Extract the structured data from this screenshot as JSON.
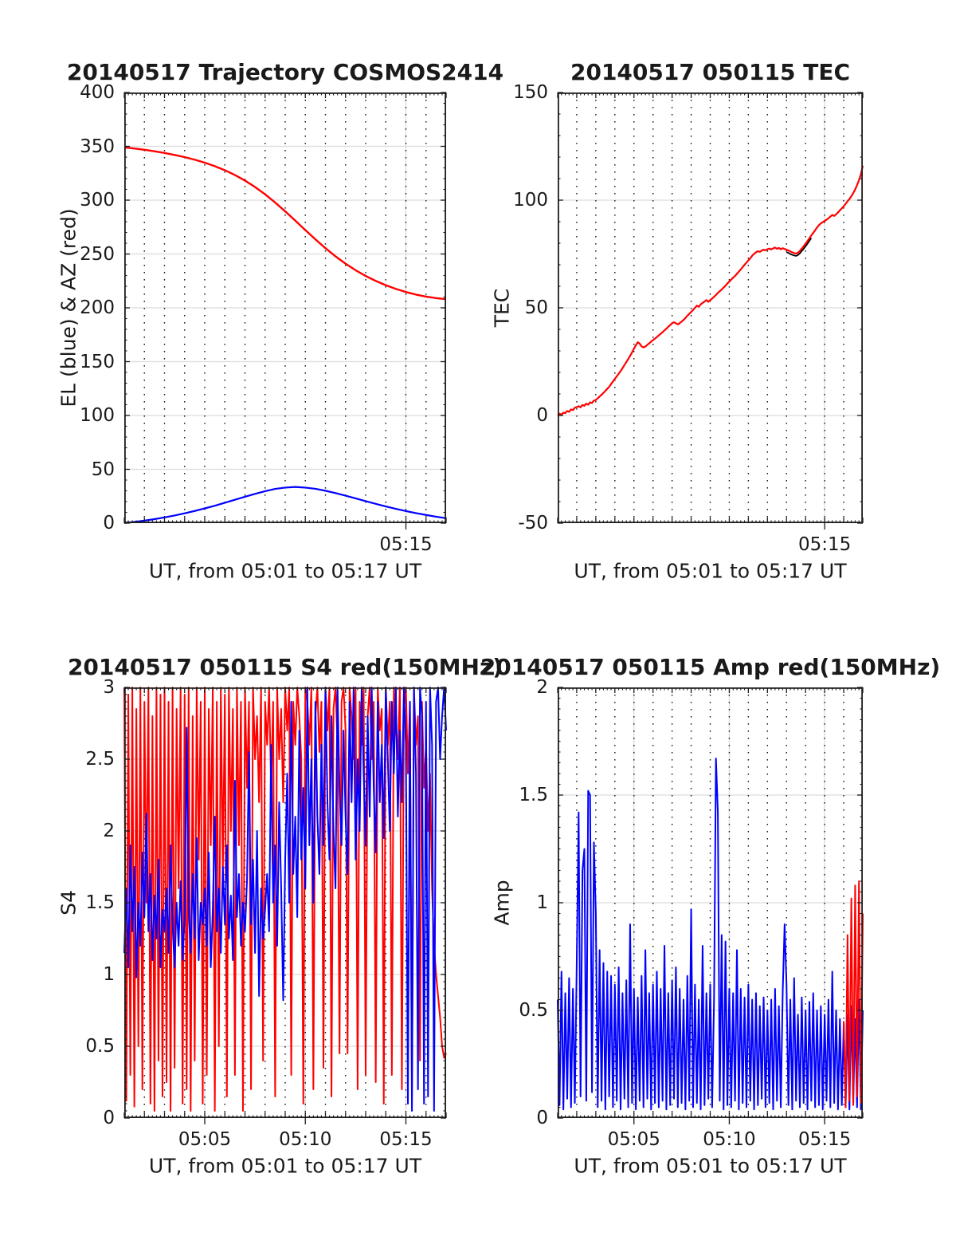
{
  "figure": {
    "background": "#ffffff",
    "text_color": "#1a1a1a",
    "axis_color": "#1c1c1c",
    "grid_solid_color": "#dcdcdc",
    "grid_dotted_color": "#1a1a1a",
    "red": "#ff0000",
    "blue": "#0000ff"
  },
  "chart_data": [
    {
      "type": "line",
      "title": "20140517 Trajectory COSMOS2414",
      "ylabel": "EL (blue) & AZ (red)",
      "xlabel": "UT, from 05:01 to 05:17 UT",
      "x_range": [
        1,
        17
      ],
      "x_minor": 0.2,
      "x_tick_labels": [
        {
          "m": 15,
          "label": "05:15"
        }
      ],
      "ylim": [
        0,
        400
      ],
      "y_ticks": [
        0,
        50,
        100,
        150,
        200,
        250,
        300,
        350,
        400
      ],
      "y_minor": 10,
      "grid": "dotted vertical each minute, solid gray horizontal at ticks",
      "legend": "none",
      "series": [
        {
          "name": "AZ (red)",
          "color": "#ff0000",
          "width": 2.4,
          "x_start": 1,
          "x_step": 0.5,
          "y": [
            349,
            348,
            346.8,
            345.4,
            343.8,
            342,
            340,
            337.6,
            334.8,
            331.6,
            327.8,
            323.4,
            318.2,
            312.2,
            305.4,
            297.8,
            289.6,
            281,
            272.2,
            263.6,
            255.4,
            247.8,
            241,
            234.9,
            229.6,
            225,
            221,
            217.6,
            214.7,
            212.3,
            210.4,
            209,
            208
          ]
        },
        {
          "name": "EL (blue)",
          "color": "#0000ff",
          "width": 2.2,
          "x_start": 1,
          "x_step": 0.5,
          "y": [
            0.2,
            1.1,
            2.3,
            3.7,
            5.3,
            7.1,
            9.1,
            11.3,
            13.7,
            16.2,
            18.9,
            21.7,
            24.5,
            27.2,
            29.7,
            31.8,
            33,
            33.6,
            33,
            31.9,
            30.1,
            27.9,
            25.5,
            23,
            20.4,
            17.9,
            15.5,
            13.3,
            11.2,
            9.3,
            7.6,
            6,
            4.6
          ]
        }
      ]
    },
    {
      "type": "line",
      "title": "20140517 050115 TEC",
      "ylabel": "TEC",
      "xlabel": "UT, from 05:01 to 05:17 UT",
      "x_range": [
        1,
        17
      ],
      "x_minor": 0.2,
      "x_tick_labels": [
        {
          "m": 15,
          "label": "05:15"
        }
      ],
      "ylim": [
        -50,
        150
      ],
      "y_ticks": [
        -50,
        0,
        50,
        100,
        150
      ],
      "y_minor": 10,
      "grid": "dotted vertical each minute, solid gray horizontal at ticks",
      "legend": "none",
      "series": [
        {
          "name": "TEC raw (black)",
          "color": "#000000",
          "width": 1.8,
          "x_start": 13.0,
          "x_step": 0.1,
          "y": [
            75.9,
            75.5,
            75,
            74.6,
            74.3,
            74.1,
            74.5,
            75.3,
            76.4,
            77.4,
            78.6,
            79.8,
            81.1,
            82.4
          ]
        },
        {
          "name": "TEC (red)",
          "color": "#ff0000",
          "width": 2.2,
          "x_start": 1,
          "x_step": 0.1,
          "y": [
            0,
            0.8,
            0.4,
            1.3,
            1.1,
            2.1,
            1.7,
            2.8,
            2.5,
            3.6,
            3.9,
            4.3,
            3.8,
            4.9,
            4.5,
            5.5,
            5,
            6.1,
            5.8,
            6.9,
            7.2,
            8,
            8.8,
            9.6,
            10.5,
            11.4,
            12.4,
            13.3,
            14.6,
            15.8,
            17,
            18.2,
            19.4,
            20.6,
            22,
            23.4,
            24.8,
            26.2,
            27.7,
            29.3,
            31,
            32.6,
            34,
            33.4,
            32.1,
            31.6,
            32,
            32.8,
            33.5,
            34.3,
            35,
            35.7,
            36.4,
            37.2,
            37.9,
            38.7,
            39.5,
            40.3,
            41.2,
            42,
            42.8,
            43.3,
            42.8,
            42.3,
            42.9,
            43.6,
            44.4,
            45.3,
            46.3,
            47.2,
            48.1,
            49,
            50,
            51,
            50.5,
            51.6,
            52.3,
            52.9,
            53.6,
            52.8,
            53.6,
            54.3,
            55.1,
            56,
            56.9,
            57.7,
            58.5,
            59.4,
            60.3,
            61.3,
            62.2,
            63.1,
            64,
            64.8,
            65.8,
            66.8,
            67.8,
            68.9,
            70,
            71,
            72,
            73,
            74.2,
            75.1,
            75.8,
            76.3,
            76,
            76.6,
            77,
            76.7,
            77.2,
            77.5,
            77.1,
            77.6,
            78,
            77.4,
            77.8,
            77.2,
            77.7,
            77.3,
            77,
            76.6,
            76.2,
            75.8,
            75.4,
            75.2,
            75.6,
            76.4,
            77.5,
            78.6,
            79.8,
            81,
            82.3,
            83.6,
            84.8,
            86,
            87.3,
            88.4,
            89.2,
            89.8,
            90.4,
            90.9,
            91.6,
            92.4,
            93.1,
            92.7,
            93.4,
            94.3,
            95.3,
            96.2,
            97.2,
            98.3,
            99.5,
            100.5,
            101.8,
            103.3,
            105,
            107,
            109.3,
            112,
            116
          ]
        }
      ]
    },
    {
      "type": "line",
      "title": "20140517 050115 S4 red(150MHz)",
      "ylabel": "S4",
      "xlabel": "UT, from 05:01 to 05:17 UT",
      "x_range": [
        1,
        17
      ],
      "x_minor": 0.2,
      "x_tick_labels": [
        {
          "m": 5,
          "label": "05:05"
        },
        {
          "m": 10,
          "label": "05:10"
        },
        {
          "m": 15,
          "label": "05:15"
        }
      ],
      "ylim": [
        0,
        3
      ],
      "y_ticks": [
        0,
        0.5,
        1,
        1.5,
        2,
        2.5,
        3
      ],
      "y_minor": 0.05,
      "grid": "dotted vertical each minute, solid gray horizontal at ticks",
      "legend": "none",
      "series": [
        {
          "name": "S4 150MHz (red)",
          "color": "#ff0000",
          "width": 2,
          "x_start": 1,
          "x_step": 0.1,
          "y": [
            3,
            0.12,
            2.95,
            0.3,
            3,
            0.08,
            2.85,
            0.5,
            3,
            0.2,
            2.9,
            1.5,
            3,
            0.1,
            2.8,
            0.05,
            3,
            0.4,
            2.95,
            0.15,
            3,
            0.25,
            2.9,
            0.05,
            3,
            0.35,
            2.85,
            1.6,
            3,
            0.1,
            2.95,
            0.2,
            3,
            0.05,
            2.8,
            0.4,
            3,
            1.8,
            2.9,
            0.1,
            3,
            0.3,
            2.85,
            1.9,
            3,
            0.05,
            2.9,
            0.5,
            3,
            1.7,
            2.95,
            0.15,
            3,
            2,
            2.85,
            0.3,
            3,
            1.9,
            2.9,
            0.05,
            3,
            2.3,
            2.9,
            0.2,
            3,
            2.5,
            2.8,
            2.2,
            3,
            0.4,
            2.9,
            2.6,
            3,
            2.3,
            2.9,
            0.15,
            3,
            2.5,
            2.85,
            2.2,
            3,
            2.7,
            3,
            0.3,
            2.9,
            2.6,
            3,
            2.8,
            2.5,
            0.1,
            3,
            2.9,
            2.6,
            3,
            0.2,
            2.8,
            3,
            2.55,
            2.9,
            0.35,
            3,
            2.7,
            3,
            0.15,
            2.85,
            3,
            2.6,
            0.45,
            2.9,
            3,
            2.7,
            0.45,
            3,
            2.8,
            2.5,
            3,
            0.2,
            2.9,
            2.6,
            3,
            0.3,
            2.8,
            3,
            2.5,
            2.9,
            0.25,
            3,
            2.7,
            2.85,
            0.1,
            3,
            2.6,
            2.9,
            0.3,
            3,
            2.75,
            2.5,
            3,
            0.2,
            2.85,
            3,
            2.4,
            2.9,
            0.15,
            3,
            2.6,
            2.8,
            0.4,
            2.9,
            2.3,
            2.6,
            2,
            2.4,
            1.6,
            1.2,
            1,
            0.85,
            0.7,
            0.5,
            0.42,
            0.45
          ]
        },
        {
          "name": "S4 400MHz (blue)",
          "color": "#0000ff",
          "width": 2,
          "x_start": 1,
          "x_step": 0.1,
          "y": [
            1.15,
            1.6,
            1.05,
            1.9,
            1.3,
            1.75,
            0.98,
            1.5,
            1.2,
            1.85,
            1.4,
            2.12,
            1.3,
            1.7,
            1.1,
            1.55,
            1.25,
            1.8,
            1.05,
            1.45,
            1.3,
            1.6,
            1.15,
            1.9,
            1.35,
            1.05,
            1.5,
            1.2,
            1.65,
            1.1,
            1.4,
            2.72,
            1.45,
            1.15,
            1.7,
            1.25,
            1.95,
            1.1,
            1.5,
            1.35,
            1.6,
            1.2,
            1.85,
            1.05,
            1.45,
            2.1,
            1.3,
            1.6,
            1.15,
            1.75,
            1.35,
            1.9,
            1.25,
            1.55,
            1.1,
            2.35,
            1.4,
            1.7,
            1.2,
            1.5,
            1.3,
            1.65,
            2.55,
            1.35,
            1.8,
            1.15,
            2,
            0.85,
            1.6,
            1.25,
            1.45,
            1.7,
            1.3,
            2.6,
            1.5,
            1.9,
            1.2,
            2.2,
            1.6,
            0.82,
            1.8,
            2.4,
            1.5,
            2.9,
            1.7,
            2.1,
            1.4,
            2.7,
            1.8,
            2.3,
            1.6,
            3,
            1.9,
            2.5,
            1.5,
            2.9,
            2.1,
            1.7,
            2.6,
            1.9,
            3,
            2.2,
            1.8,
            2.8,
            2,
            1.6,
            3,
            2.3,
            1.9,
            2.7,
            2.1,
            1.7,
            2.9,
            2.2,
            3,
            1.8,
            2.5,
            2,
            3,
            2.4,
            1.9,
            2.8,
            2.1,
            3,
            2.3,
            1.85,
            2.9,
            2.2,
            2.6,
            1.95,
            3,
            2.5,
            2,
            2.9,
            2.4,
            3,
            2.1,
            2.7,
            2.2,
            3,
            2.6,
            0.1,
            2.9,
            0.05,
            3,
            2.4,
            0.2,
            3,
            2.8,
            0.1,
            2.9,
            0.15,
            3,
            2.6,
            0.05,
            2.9,
            3,
            2.5,
            2.8,
            3,
            2.7
          ]
        }
      ]
    },
    {
      "type": "line",
      "title": "20140517 050115 Amp red(150MHz)",
      "ylabel": "Amp",
      "xlabel": "UT, from 05:01 to 05:17 UT",
      "x_range": [
        1,
        17
      ],
      "x_minor": 0.2,
      "x_tick_labels": [
        {
          "m": 5,
          "label": "05:05"
        },
        {
          "m": 10,
          "label": "05:10"
        },
        {
          "m": 15,
          "label": "05:15"
        }
      ],
      "ylim": [
        0,
        2
      ],
      "y_ticks": [
        0,
        0.5,
        1,
        1.5,
        2
      ],
      "y_minor": 0.05,
      "grid": "dotted vertical each minute, solid gray horizontal at ticks",
      "legend": "none",
      "series": [
        {
          "name": "Amp 400MHz (blue)",
          "color": "#0000ff",
          "width": 2,
          "x_start": 1,
          "x_step": 0.1,
          "y": [
            0.55,
            0.06,
            0.68,
            0.04,
            0.58,
            0.09,
            0.65,
            0.05,
            0.6,
            0.07,
            0.72,
            1.42,
            0.1,
            1.15,
            1.25,
            0.08,
            1.52,
            1.5,
            0.12,
            1.28,
            0.95,
            0.05,
            0.78,
            0.08,
            0.72,
            0.04,
            0.68,
            0.1,
            0.66,
            0.05,
            0.62,
            0.08,
            0.7,
            0.04,
            0.58,
            0.09,
            0.64,
            0.05,
            0.9,
            0.07,
            0.6,
            0.04,
            0.56,
            0.08,
            0.66,
            0.05,
            0.78,
            0.09,
            0.58,
            0.04,
            0.62,
            0.07,
            0.68,
            0.05,
            0.6,
            0.08,
            0.8,
            0.04,
            0.58,
            0.06,
            0.64,
            0.09,
            0.7,
            0.05,
            0.6,
            0.07,
            0.55,
            0.04,
            0.66,
            0.08,
            0.97,
            0.05,
            0.62,
            0.07,
            0.55,
            0.04,
            0.8,
            0.06,
            0.58,
            0.09,
            0.62,
            0.05,
            0.55,
            1.67,
            1.42,
            0.08,
            0.85,
            0.04,
            0.82,
            0.06,
            0.6,
            0.05,
            0.58,
            0.08,
            0.78,
            0.04,
            0.6,
            0.07,
            0.56,
            0.05,
            0.62,
            0.08,
            0.55,
            0.04,
            0.58,
            0.06,
            0.52,
            0.09,
            0.56,
            0.05,
            0.5,
            0.07,
            0.55,
            0.04,
            0.6,
            0.08,
            0.52,
            0.05,
            0.58,
            0.9,
            0.62,
            0.06,
            0.55,
            0.04,
            0.65,
            0.08,
            0.48,
            0.05,
            0.56,
            0.07,
            0.5,
            0.04,
            0.54,
            0.08,
            0.58,
            0.05,
            0.5,
            0.06,
            0.52,
            0.04,
            0.48,
            0.08,
            0.55,
            0.05,
            0.68,
            0.07,
            0.5,
            0.04,
            0.46,
            0.06,
            0.44,
            0.05,
            0.48,
            0.04,
            0.52,
            0.07,
            0.46,
            0.05,
            0.55,
            0.04,
            0.5
          ]
        },
        {
          "name": "Amp 150MHz (red)",
          "color": "#ff0000",
          "width": 2,
          "x_start": 16.0,
          "x_step": 0.1,
          "y": [
            0.45,
            0.05,
            0.85,
            0.08,
            1.02,
            0.06,
            1.08,
            0.1,
            1.1,
            0.07,
            0.95
          ]
        }
      ]
    }
  ]
}
